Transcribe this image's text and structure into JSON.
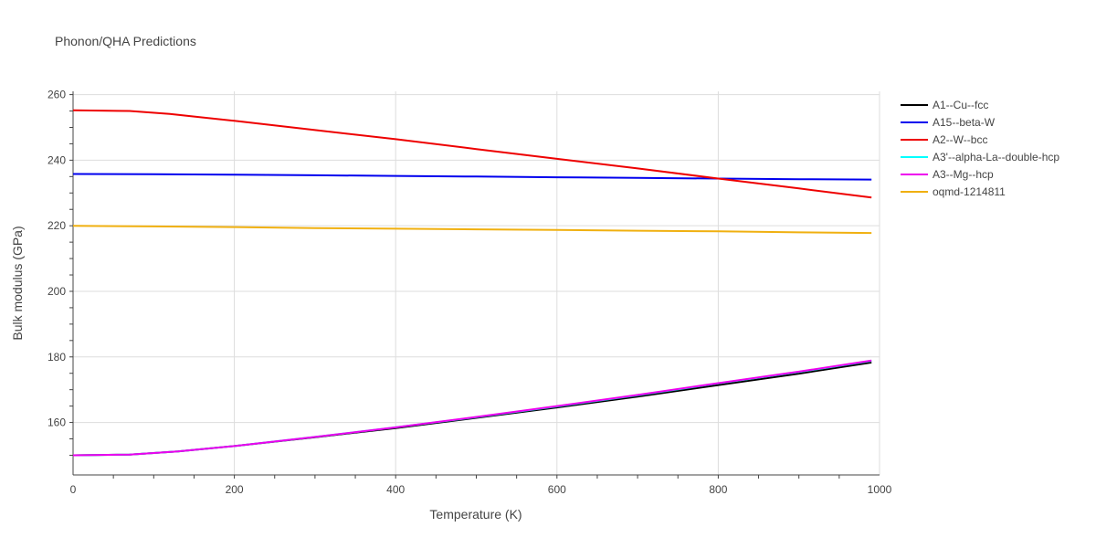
{
  "chart_data": {
    "type": "line",
    "title": "Phonon/QHA Predictions",
    "xlabel": "Temperature (K)",
    "ylabel": "Bulk modulus (GPa)",
    "xlim": [
      0,
      1000
    ],
    "ylim": [
      144,
      261
    ],
    "xticks": [
      0,
      200,
      400,
      600,
      800,
      1000
    ],
    "yticks": [
      160,
      180,
      200,
      220,
      240,
      260
    ],
    "grid": true,
    "legend_position": "top-right",
    "series": [
      {
        "name": "A1--Cu--fcc",
        "color": "#000000",
        "x": [
          0,
          70,
          130,
          200,
          300,
          400,
          500,
          600,
          700,
          800,
          900,
          990
        ],
        "y": [
          150.0,
          150.2,
          151.2,
          152.8,
          155.5,
          158.3,
          161.4,
          164.6,
          167.9,
          171.4,
          174.9,
          178.3
        ]
      },
      {
        "name": "A15--beta-W",
        "color": "#0000ee",
        "x": [
          0,
          100,
          200,
          300,
          400,
          500,
          600,
          700,
          800,
          900,
          990
        ],
        "y": [
          235.8,
          235.7,
          235.6,
          235.4,
          235.2,
          235.0,
          234.8,
          234.6,
          234.4,
          234.2,
          234.1
        ]
      },
      {
        "name": "A2--W--bcc",
        "color": "#ee0000",
        "x": [
          0,
          70,
          120,
          200,
          300,
          400,
          500,
          600,
          700,
          800,
          900,
          990
        ],
        "y": [
          255.2,
          255.0,
          254.1,
          252.0,
          249.2,
          246.4,
          243.4,
          240.4,
          237.5,
          234.4,
          231.4,
          228.6
        ]
      },
      {
        "name": "A3'--alpha-La--double-hcp",
        "color": "#00ffff",
        "x": [
          0,
          70,
          130,
          200,
          300,
          400,
          500,
          600,
          700,
          800,
          900,
          990
        ],
        "y": [
          150.0,
          150.2,
          151.2,
          152.8,
          155.6,
          158.5,
          161.6,
          164.9,
          168.3,
          171.9,
          175.4,
          178.8
        ]
      },
      {
        "name": "A3--Mg--hcp",
        "color": "#ee00ee",
        "x": [
          0,
          70,
          130,
          200,
          300,
          400,
          500,
          600,
          700,
          800,
          900,
          990
        ],
        "y": [
          150.0,
          150.2,
          151.2,
          152.8,
          155.6,
          158.5,
          161.7,
          165.0,
          168.4,
          172.0,
          175.5,
          178.9
        ]
      },
      {
        "name": "oqmd-1214811",
        "color": "#f0b010",
        "x": [
          0,
          100,
          200,
          300,
          400,
          500,
          600,
          700,
          800,
          900,
          990
        ],
        "y": [
          220.0,
          219.8,
          219.6,
          219.3,
          219.1,
          218.9,
          218.7,
          218.5,
          218.3,
          218.0,
          217.8
        ]
      }
    ]
  }
}
